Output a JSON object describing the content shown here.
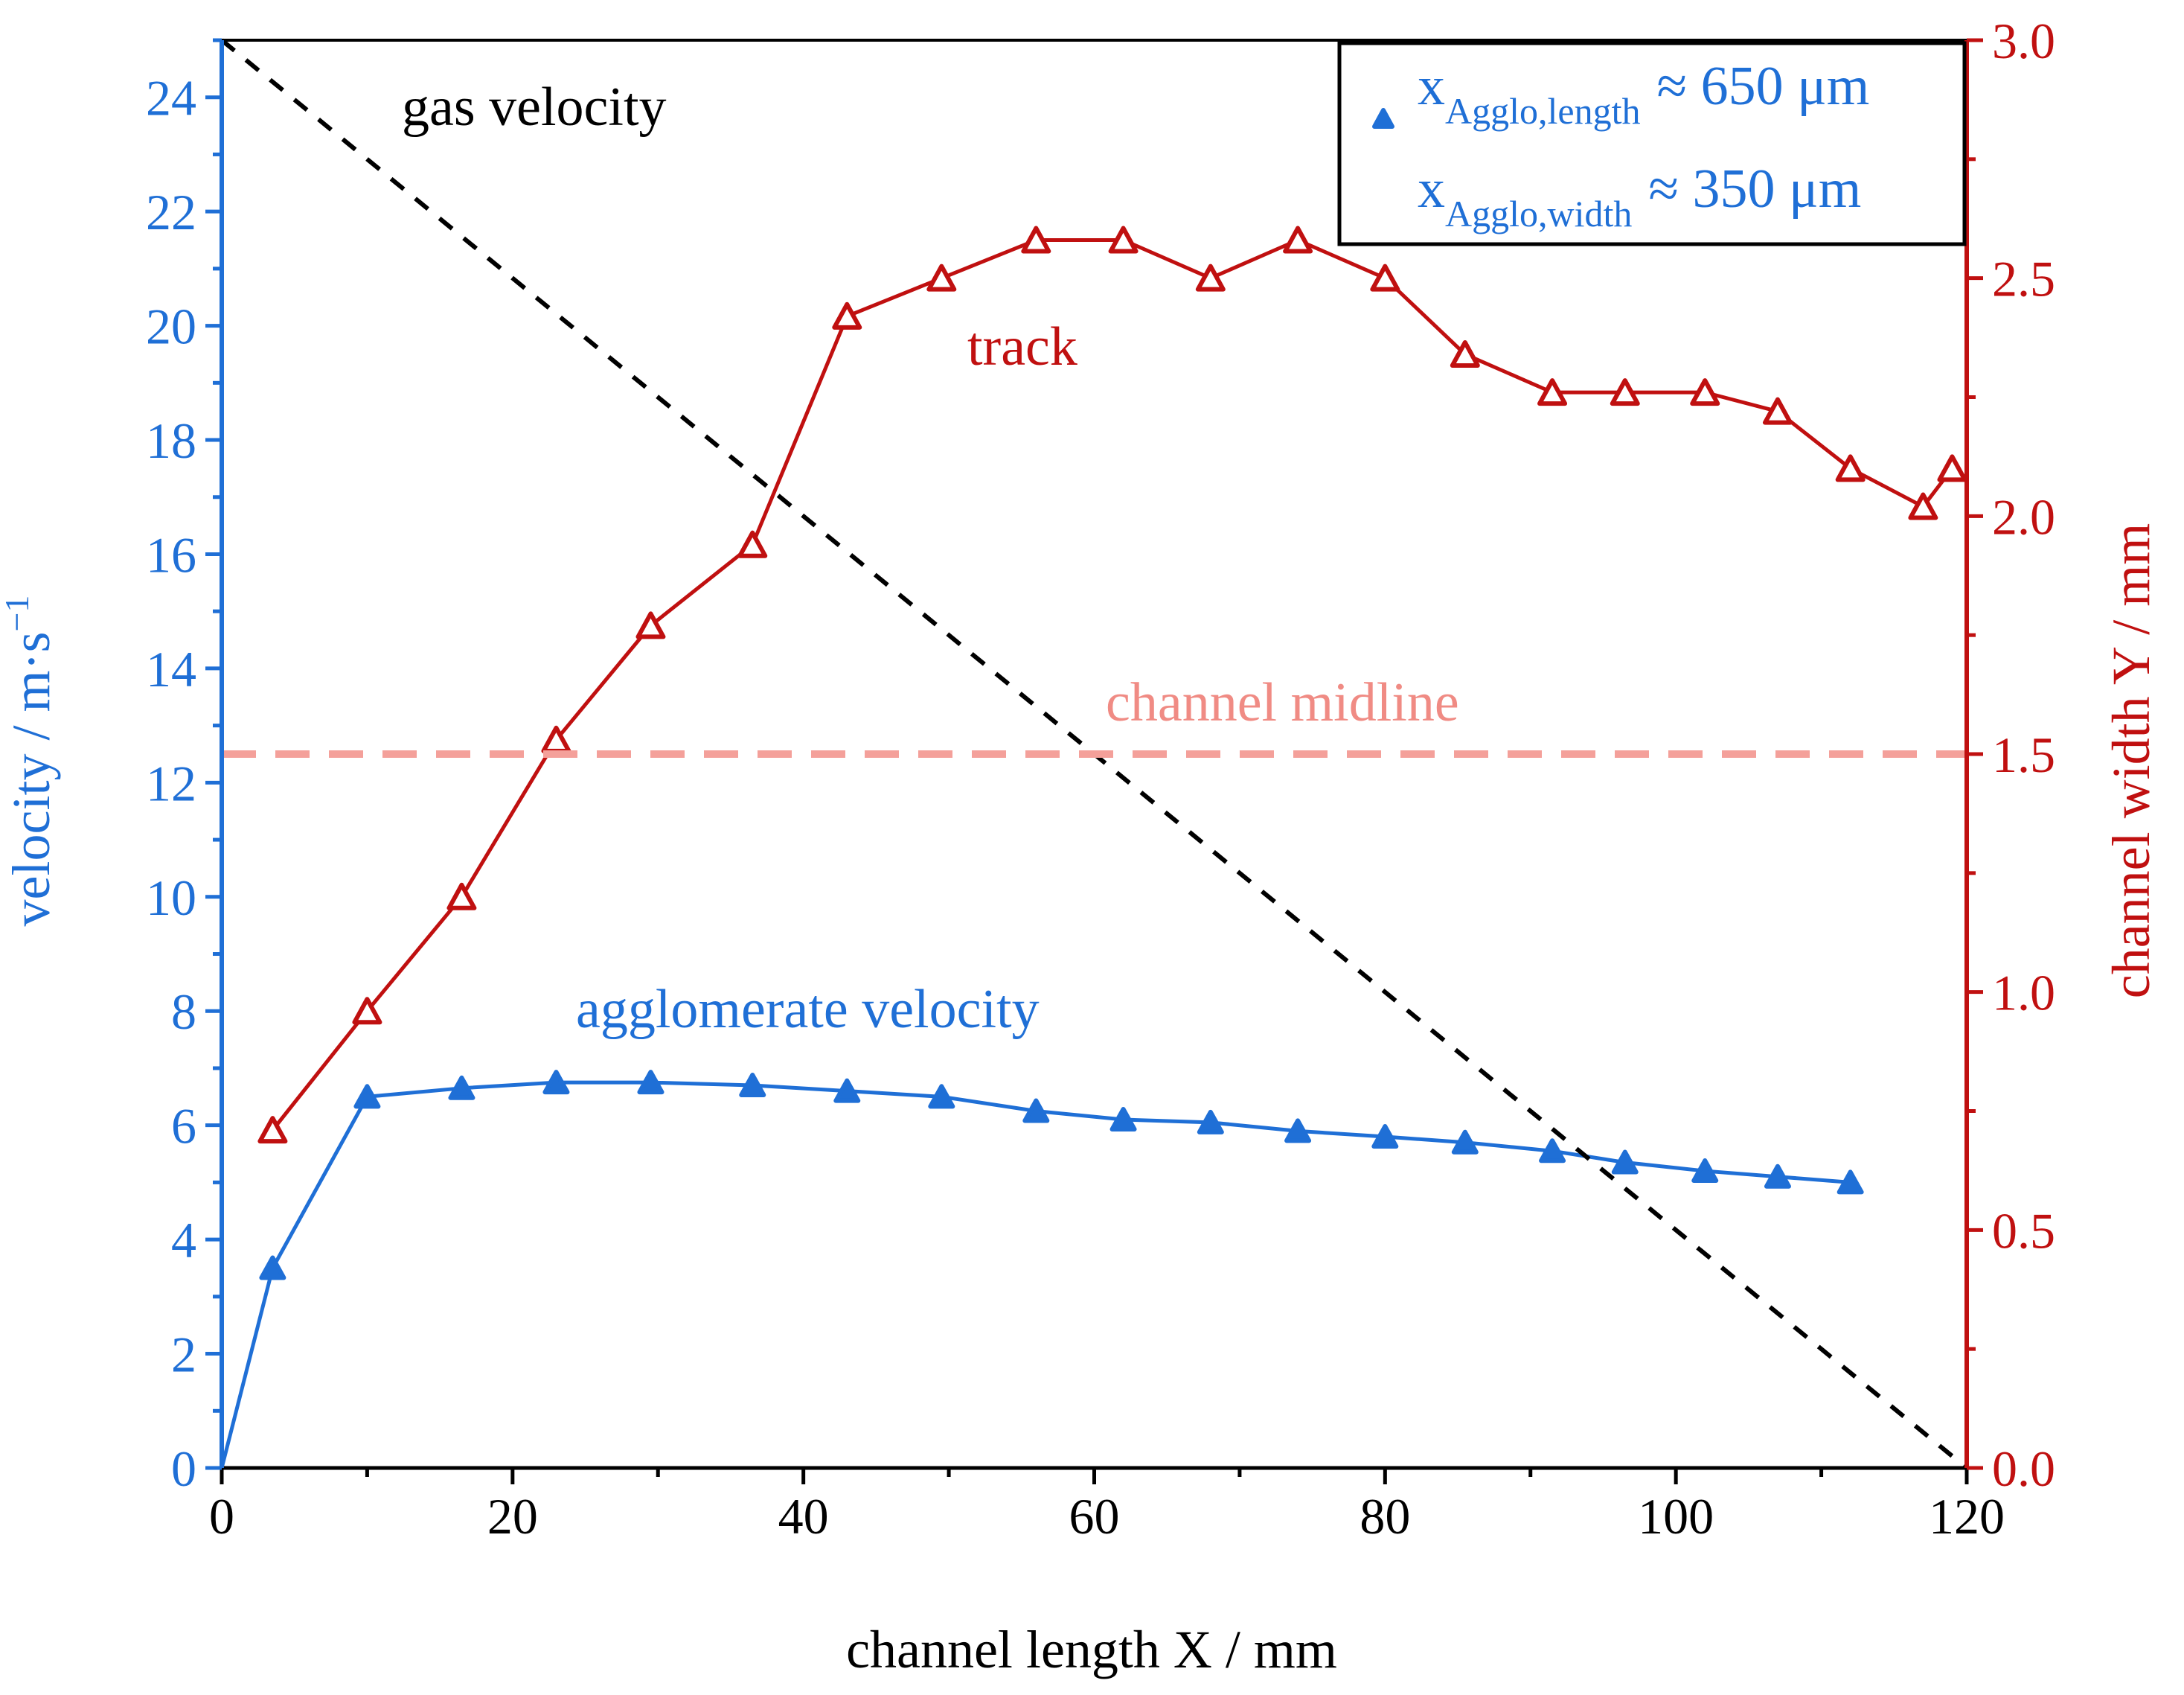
{
  "chart_data": {
    "type": "line",
    "title": "",
    "xlabel": "channel length X / mm",
    "ylabel_left": "velocity / m·s",
    "ylabel_left_exp": "−1",
    "ylabel_right": "channel width Y / mm",
    "xlim": [
      0,
      120
    ],
    "ylim_left": [
      0,
      25
    ],
    "ylim_right": [
      0,
      3
    ],
    "x_ticks": [
      "0",
      "20",
      "40",
      "60",
      "80",
      "100",
      "120"
    ],
    "y_left_ticks": [
      "0",
      "2",
      "4",
      "6",
      "8",
      "10",
      "12",
      "14",
      "16",
      "18",
      "20",
      "22",
      "24"
    ],
    "y_right_ticks": [
      "0.0",
      "0.5",
      "1.0",
      "1.5",
      "2.0",
      "2.5",
      "3.0"
    ],
    "colors": {
      "left_axis": "#1f6fd6",
      "right_axis": "#c01010",
      "gas": "#000000",
      "midline": "#f4a09a"
    },
    "series": [
      {
        "name": "agglomerate velocity",
        "axis": "left",
        "marker": "filled-triangle",
        "x": [
          0,
          3.5,
          10,
          16.5,
          23,
          29.5,
          36.5,
          43,
          49.5,
          56,
          62,
          68,
          74,
          80,
          85.5,
          91.5,
          96.5,
          102,
          107,
          112
        ],
        "y": [
          0,
          3.5,
          6.5,
          6.65,
          6.75,
          6.75,
          6.7,
          6.6,
          6.5,
          6.25,
          6.1,
          6.05,
          5.9,
          5.8,
          5.7,
          5.55,
          5.35,
          5.2,
          5.1,
          5.0
        ]
      },
      {
        "name": "track",
        "axis": "right",
        "marker": "open-triangle",
        "x": [
          3.5,
          10,
          16.5,
          23,
          36.5,
          29.5,
          43,
          49.5,
          56,
          62,
          68,
          74,
          80,
          85.5,
          91.5,
          96.5,
          102,
          107,
          112,
          117,
          119
        ],
        "y": [
          0.71,
          0.96,
          1.2,
          1.53,
          1.94,
          1.77,
          2.42,
          2.5,
          2.58,
          2.58,
          2.5,
          2.58,
          2.5,
          2.34,
          2.26,
          2.26,
          2.26,
          2.22,
          2.1,
          2.02,
          2.1
        ],
        "order": "by-x"
      },
      {
        "name": "gas velocity",
        "axis": "left",
        "style": "dashed",
        "x": [
          0,
          120
        ],
        "y": [
          25,
          0
        ]
      },
      {
        "name": "channel midline",
        "axis": "right",
        "style": "dashed",
        "x": [
          0,
          120
        ],
        "y": [
          1.5,
          1.5
        ]
      }
    ],
    "annotations": {
      "gas": "gas velocity",
      "track": "track",
      "midline": "channel midline",
      "agglomerate": "agglomerate velocity"
    },
    "legend": {
      "placement": "top-right",
      "line1_main": "x",
      "line1_sub": "Agglo,length",
      "line1_value": "≈ 650 μm",
      "line2_main": "x",
      "line2_sub": "Agglo,width",
      "line2_value": "≈ 350 μm"
    }
  }
}
